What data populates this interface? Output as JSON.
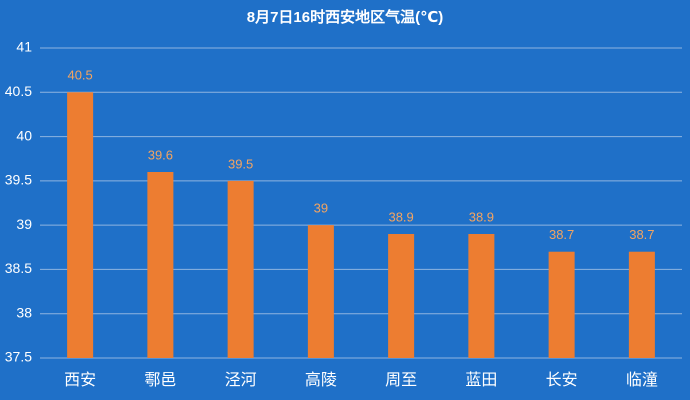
{
  "chart_data": {
    "type": "bar",
    "title": "8月7日16时西安地区气温(℃)",
    "categories": [
      "西安",
      "鄠邑",
      "泾河",
      "高陵",
      "周至",
      "蓝田",
      "长安",
      "临潼"
    ],
    "values": [
      40.5,
      39.6,
      39.5,
      39,
      38.9,
      38.9,
      38.7,
      38.7
    ],
    "color": "#ed7d31",
    "ylim": [
      37.5,
      41
    ],
    "yticks": [
      37.5,
      38,
      38.5,
      39,
      39.5,
      40,
      40.5,
      41
    ],
    "grid": true
  }
}
